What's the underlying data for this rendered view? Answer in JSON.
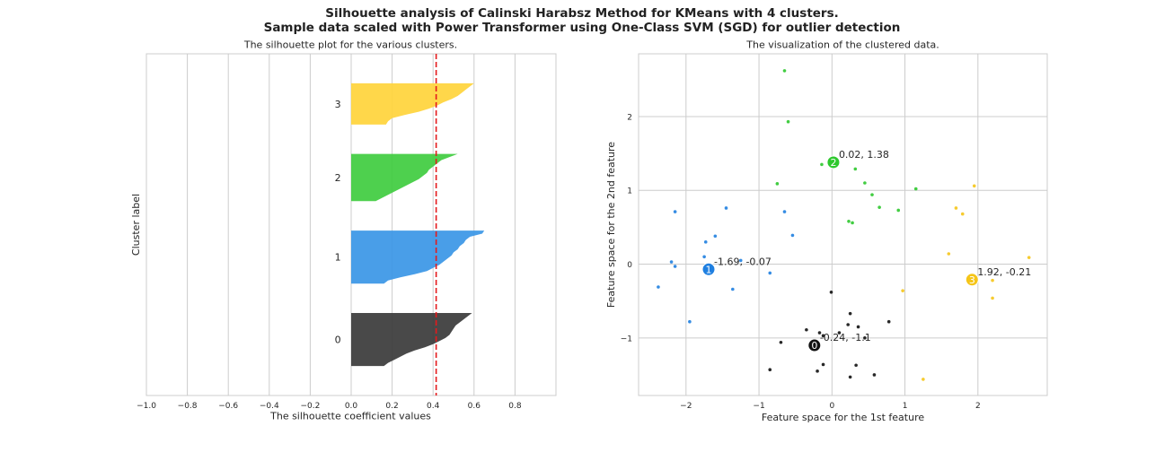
{
  "figure": {
    "title_line1": "Silhouette analysis of Calinski Harabsz Method for KMeans with 4 clusters.",
    "title_line2": "Sample data scaled with Power Transformer using One-Class SVM (SGD) for outlier detection"
  },
  "chart_data": [
    {
      "type": "area",
      "title": "The silhouette plot for the various clusters.",
      "xlabel": "The silhouette coefficient values",
      "ylabel": "Cluster label",
      "xlim": [
        -1.0,
        1.0
      ],
      "xticks": [
        -1.0,
        -0.8,
        -0.6,
        -0.4,
        -0.2,
        0.0,
        0.2,
        0.4,
        0.6,
        0.8
      ],
      "xtick_labels": [
        "−1.0",
        "−0.8",
        "−0.6",
        "−0.4",
        "−0.2",
        "0.0",
        "0.2",
        "0.4",
        "0.6",
        "0.8"
      ],
      "grid": true,
      "average_silhouette": 0.415,
      "average_line_color": "#e41a1c",
      "clusters": [
        {
          "label": "0",
          "color": "#3a3a3a",
          "silhouette_values": [
            0.59,
            0.57,
            0.55,
            0.53,
            0.51,
            0.5,
            0.49,
            0.48,
            0.46,
            0.43,
            0.4,
            0.36,
            0.31,
            0.27,
            0.24,
            0.21,
            0.18,
            0.16
          ]
        },
        {
          "label": "1",
          "color": "#3a96e6",
          "silhouette_values": [
            0.65,
            0.64,
            0.58,
            0.56,
            0.55,
            0.53,
            0.52,
            0.5,
            0.49,
            0.47,
            0.45,
            0.43,
            0.4,
            0.37,
            0.31,
            0.24,
            0.18,
            0.16
          ]
        },
        {
          "label": "2",
          "color": "#3fcc3f",
          "silhouette_values": [
            0.52,
            0.48,
            0.44,
            0.42,
            0.4,
            0.38,
            0.37,
            0.35,
            0.33,
            0.3,
            0.27,
            0.24,
            0.21,
            0.18,
            0.15,
            0.12
          ]
        },
        {
          "label": "3",
          "color": "#ffd43b",
          "silhouette_values": [
            0.6,
            0.58,
            0.56,
            0.54,
            0.52,
            0.49,
            0.45,
            0.42,
            0.38,
            0.33,
            0.26,
            0.2,
            0.18,
            0.17
          ]
        }
      ]
    },
    {
      "type": "scatter",
      "title": "The visualization of the clustered data.",
      "xlabel": "Feature space for the 1st feature",
      "ylabel": "Feature space for the 2nd feature",
      "xlim": [
        -2.65,
        2.95
      ],
      "ylim": [
        -1.78,
        2.85
      ],
      "xticks": [
        -2,
        -1,
        0,
        1,
        2
      ],
      "xtick_labels": [
        "−2",
        "−1",
        "0",
        "1",
        "2"
      ],
      "yticks": [
        -1,
        0,
        1,
        2
      ],
      "ytick_labels": [
        "−1",
        "0",
        "1",
        "2"
      ],
      "grid": true,
      "clusters": [
        {
          "label": "0",
          "color": "#111111",
          "center": [
            -0.24,
            -1.1
          ],
          "center_label": "-0.24, -1.1",
          "points": [
            [
              -0.01,
              -0.38
            ],
            [
              0.25,
              -0.67
            ],
            [
              0.22,
              -0.82
            ],
            [
              0.36,
              -0.85
            ],
            [
              0.78,
              -0.78
            ],
            [
              -0.35,
              -0.89
            ],
            [
              -0.17,
              -0.93
            ],
            [
              -0.12,
              -0.97
            ],
            [
              0.1,
              -0.93
            ],
            [
              -0.7,
              -1.06
            ],
            [
              0.45,
              -1.0
            ],
            [
              -0.85,
              -1.43
            ],
            [
              -0.12,
              -1.36
            ],
            [
              0.33,
              -1.37
            ],
            [
              -0.2,
              -1.45
            ],
            [
              0.25,
              -1.53
            ],
            [
              0.58,
              -1.5
            ]
          ]
        },
        {
          "label": "1",
          "color": "#1f7fe0",
          "center": [
            -1.69,
            -0.07
          ],
          "center_label": "-1.69, -0.07",
          "points": [
            [
              -2.15,
              0.71
            ],
            [
              -1.45,
              0.76
            ],
            [
              -0.65,
              0.71
            ],
            [
              -0.54,
              0.39
            ],
            [
              -1.6,
              0.38
            ],
            [
              -1.73,
              0.3
            ],
            [
              -1.75,
              0.1
            ],
            [
              -2.2,
              0.03
            ],
            [
              -2.15,
              -0.03
            ],
            [
              -1.25,
              0.05
            ],
            [
              -0.85,
              -0.12
            ],
            [
              -2.38,
              -0.31
            ],
            [
              -1.36,
              -0.34
            ],
            [
              -1.95,
              -0.78
            ]
          ]
        },
        {
          "label": "2",
          "color": "#2ec82e",
          "center": [
            0.02,
            1.38
          ],
          "center_label": "0.02, 1.38",
          "points": [
            [
              -0.65,
              2.62
            ],
            [
              -0.6,
              1.93
            ],
            [
              -0.14,
              1.35
            ],
            [
              0.32,
              1.29
            ],
            [
              -0.75,
              1.09
            ],
            [
              0.45,
              1.1
            ],
            [
              0.55,
              0.94
            ],
            [
              1.15,
              1.02
            ],
            [
              0.65,
              0.77
            ],
            [
              0.91,
              0.73
            ],
            [
              0.23,
              0.58
            ],
            [
              0.28,
              0.56
            ]
          ]
        },
        {
          "label": "3",
          "color": "#f5c518",
          "center": [
            1.92,
            -0.21
          ],
          "center_label": "1.92, -0.21",
          "points": [
            [
              1.95,
              1.06
            ],
            [
              1.7,
              0.76
            ],
            [
              1.79,
              0.68
            ],
            [
              1.6,
              0.14
            ],
            [
              2.7,
              0.09
            ],
            [
              2.2,
              -0.22
            ],
            [
              0.97,
              -0.36
            ],
            [
              2.2,
              -0.46
            ],
            [
              1.25,
              -1.56
            ]
          ]
        }
      ]
    }
  ]
}
